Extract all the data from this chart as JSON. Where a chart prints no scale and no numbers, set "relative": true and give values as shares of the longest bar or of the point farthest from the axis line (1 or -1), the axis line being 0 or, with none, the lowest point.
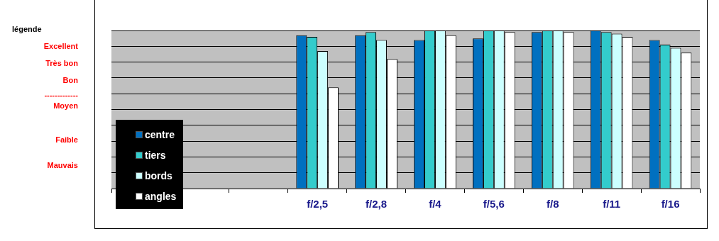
{
  "chart_data": {
    "type": "bar",
    "relative": true,
    "categories": [
      null,
      null,
      null,
      "f/2,5",
      "f/2,8",
      "f/4",
      "f/5,6",
      "f/8",
      "f/11",
      "f/16"
    ],
    "series": [
      {
        "name": "centre",
        "color": "#0070c0",
        "values": [
          null,
          null,
          null,
          0.97,
          0.97,
          0.94,
          0.95,
          0.99,
          1.0,
          0.94
        ]
      },
      {
        "name": "tiers",
        "color": "#33cccc",
        "values": [
          null,
          null,
          null,
          0.96,
          0.99,
          1.0,
          1.0,
          1.0,
          0.99,
          0.91
        ]
      },
      {
        "name": "bords",
        "color": "#ccffff",
        "values": [
          null,
          null,
          null,
          0.87,
          0.94,
          1.0,
          1.0,
          1.0,
          0.98,
          0.89
        ]
      },
      {
        "name": "angles",
        "color": "#ffffff",
        "values": [
          null,
          null,
          null,
          0.64,
          0.82,
          0.97,
          0.99,
          0.99,
          0.96,
          0.86
        ]
      }
    ],
    "grid": "y",
    "legend": "bottom left",
    "annotations": [
      "légende",
      "Excellent",
      "Très bon",
      "Bon",
      "-------------",
      "Moyen",
      "Faible",
      "Mauvais"
    ]
  }
}
